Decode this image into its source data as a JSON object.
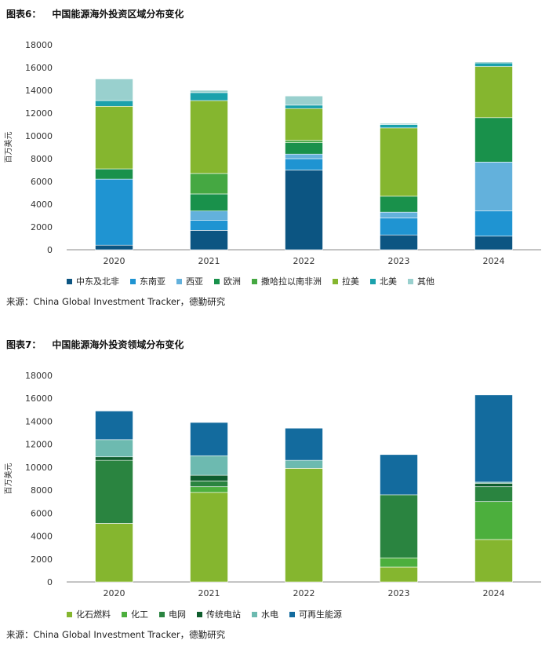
{
  "charts": [
    {
      "title_num": "图表6：",
      "title_text": "中国能源海外投资区域分布变化",
      "source": "来源：China Global Investment Tracker，德勤研究"
    },
    {
      "title_num": "图表7：",
      "title_text": "中国能源海外投资领域分布变化",
      "source": "来源：China Global Investment Tracker，德勤研究"
    }
  ],
  "chart_data": [
    {
      "type": "bar",
      "stacked": true,
      "title": "中国能源海外投资区域分布变化",
      "ylabel": "百万美元",
      "ylim": [
        0,
        18000
      ],
      "yticks": [
        0,
        2000,
        4000,
        6000,
        8000,
        10000,
        12000,
        14000,
        16000,
        18000
      ],
      "categories": [
        "2020",
        "2021",
        "2022",
        "2023",
        "2024"
      ],
      "legend_position": "bottom",
      "series": [
        {
          "name": "中东及北非",
          "color": "#0c5582",
          "values": [
            400,
            1700,
            7000,
            1300,
            1200
          ]
        },
        {
          "name": "东南亚",
          "color": "#1f94d2",
          "values": [
            5800,
            900,
            1000,
            1500,
            2200
          ]
        },
        {
          "name": "西亚",
          "color": "#63b1dc",
          "values": [
            0,
            800,
            400,
            500,
            4300
          ]
        },
        {
          "name": "欧洲",
          "color": "#19914b",
          "values": [
            900,
            1500,
            1000,
            1400,
            3900
          ]
        },
        {
          "name": "撒哈拉以南非洲",
          "color": "#45a842",
          "values": [
            0,
            1800,
            200,
            0,
            0
          ]
        },
        {
          "name": "拉美",
          "color": "#85b62f",
          "values": [
            5500,
            6400,
            2800,
            6000,
            4500
          ]
        },
        {
          "name": "北美",
          "color": "#1aa1ac",
          "values": [
            500,
            700,
            300,
            300,
            300
          ]
        },
        {
          "name": "其他",
          "color": "#99d0ce",
          "values": [
            1900,
            200,
            800,
            100,
            100
          ]
        }
      ]
    },
    {
      "type": "bar",
      "stacked": true,
      "title": "中国能源海外投资领域分布变化",
      "ylabel": "百万美元",
      "ylim": [
        0,
        18000
      ],
      "yticks": [
        0,
        2000,
        4000,
        6000,
        8000,
        10000,
        12000,
        14000,
        16000,
        18000
      ],
      "categories": [
        "2020",
        "2021",
        "2022",
        "2023",
        "2024"
      ],
      "legend_position": "bottom",
      "series": [
        {
          "name": "化石燃料",
          "color": "#85b62f",
          "values": [
            5100,
            7800,
            9900,
            1300,
            3700
          ]
        },
        {
          "name": "化工",
          "color": "#4caf3d",
          "values": [
            0,
            500,
            0,
            800,
            3300
          ]
        },
        {
          "name": "电网",
          "color": "#2a8440",
          "values": [
            5500,
            500,
            0,
            5500,
            1300
          ]
        },
        {
          "name": "传统电站",
          "color": "#0f5e2e",
          "values": [
            300,
            500,
            0,
            0,
            300
          ]
        },
        {
          "name": "水电",
          "color": "#6dbab0",
          "values": [
            1500,
            1700,
            700,
            0,
            100
          ]
        },
        {
          "name": "可再生能源",
          "color": "#136b9e",
          "values": [
            2500,
            2900,
            2800,
            3500,
            7600
          ]
        }
      ]
    }
  ]
}
